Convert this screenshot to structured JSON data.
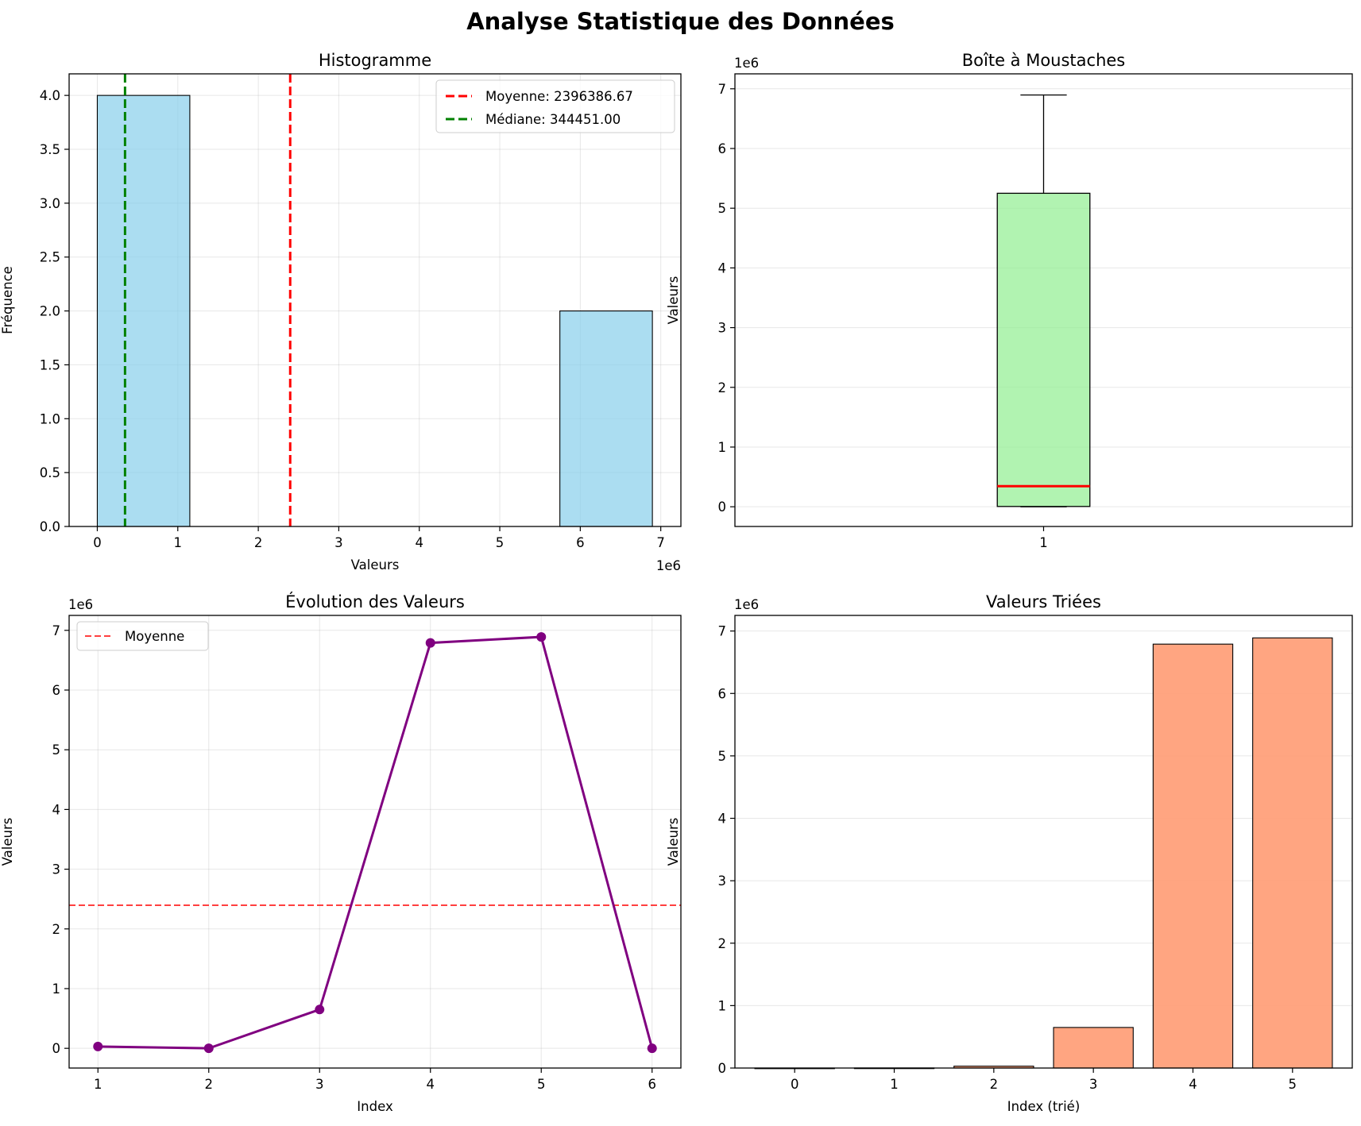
{
  "figure": {
    "title": "Analyse Statistique des Données"
  },
  "chart_data": [
    {
      "type": "bar",
      "title": "Histogramme",
      "xlabel": "Valeurs",
      "ylabel": "Fréquence",
      "x_offset_label": "1e6",
      "bins": [
        {
          "start": 0,
          "end": 1149298,
          "count": 4
        },
        {
          "start": 1149298,
          "end": 2298597,
          "count": 0
        },
        {
          "start": 2298597,
          "end": 3447895,
          "count": 0
        },
        {
          "start": 3447895,
          "end": 4597193,
          "count": 0
        },
        {
          "start": 4597193,
          "end": 5746492,
          "count": 0
        },
        {
          "start": 5746492,
          "end": 6895790,
          "count": 2
        }
      ],
      "xticks": [
        0,
        1,
        2,
        3,
        4,
        5,
        6,
        7
      ],
      "yticks": [
        "0.0",
        "0.5",
        "1.0",
        "1.5",
        "2.0",
        "2.5",
        "3.0",
        "3.5",
        "4.0"
      ],
      "xlim": [
        -350000,
        7250000
      ],
      "ylim": [
        0,
        4.2
      ],
      "vlines": [
        {
          "label": "Moyenne: 2396386.67",
          "value": 2396386.67,
          "color": "#ff0000"
        },
        {
          "label": "Médiane: 344451.00",
          "value": 344451.0,
          "color": "#008000"
        }
      ],
      "grid": true,
      "legend_position": "top-right",
      "colors": {
        "bar": "#87ceeb"
      }
    },
    {
      "type": "box",
      "title": "Boîte à Moustaches",
      "ylabel": "Valeurs",
      "y_offset_label": "1e6",
      "xticks": [
        "1"
      ],
      "yticks": [
        0,
        1,
        2,
        3,
        4,
        5,
        6,
        7
      ],
      "ylim": [
        -330000,
        7250000
      ],
      "stats": {
        "whisker_low": 0,
        "q1": 5000,
        "median": 344451,
        "q3": 5250000,
        "whisker_high": 6895790
      },
      "grid": true,
      "colors": {
        "box": "#90ee90",
        "median": "#ff0000"
      }
    },
    {
      "type": "line",
      "title": "Évolution des Valeurs",
      "xlabel": "Index",
      "ylabel": "Valeurs",
      "y_offset_label": "1e6",
      "x": [
        1,
        2,
        3,
        4,
        5,
        6
      ],
      "values": [
        30000,
        1000,
        650000,
        6790000,
        6890000,
        0
      ],
      "xticks": [
        1,
        2,
        3,
        4,
        5,
        6
      ],
      "yticks": [
        0,
        1,
        2,
        3,
        4,
        5,
        6,
        7
      ],
      "xlim": [
        0.74,
        6.26
      ],
      "ylim": [
        -330000,
        7250000
      ],
      "hline": {
        "label": "Moyenne",
        "value": 2396386.67,
        "color": "#ff0000"
      },
      "grid": true,
      "legend_position": "top-left",
      "colors": {
        "line": "#800080"
      }
    },
    {
      "type": "bar",
      "title": "Valeurs Triées",
      "xlabel": "Index (trié)",
      "ylabel": "Valeurs",
      "y_offset_label": "1e6",
      "categories": [
        "0",
        "1",
        "2",
        "3",
        "4",
        "5"
      ],
      "values": [
        0,
        1000,
        30000,
        650000,
        6790000,
        6890000
      ],
      "yticks": [
        0,
        1,
        2,
        3,
        4,
        5,
        6,
        7
      ],
      "ylim": [
        0,
        7250000
      ],
      "grid": true,
      "colors": {
        "bar": "#ffa07a"
      }
    }
  ]
}
